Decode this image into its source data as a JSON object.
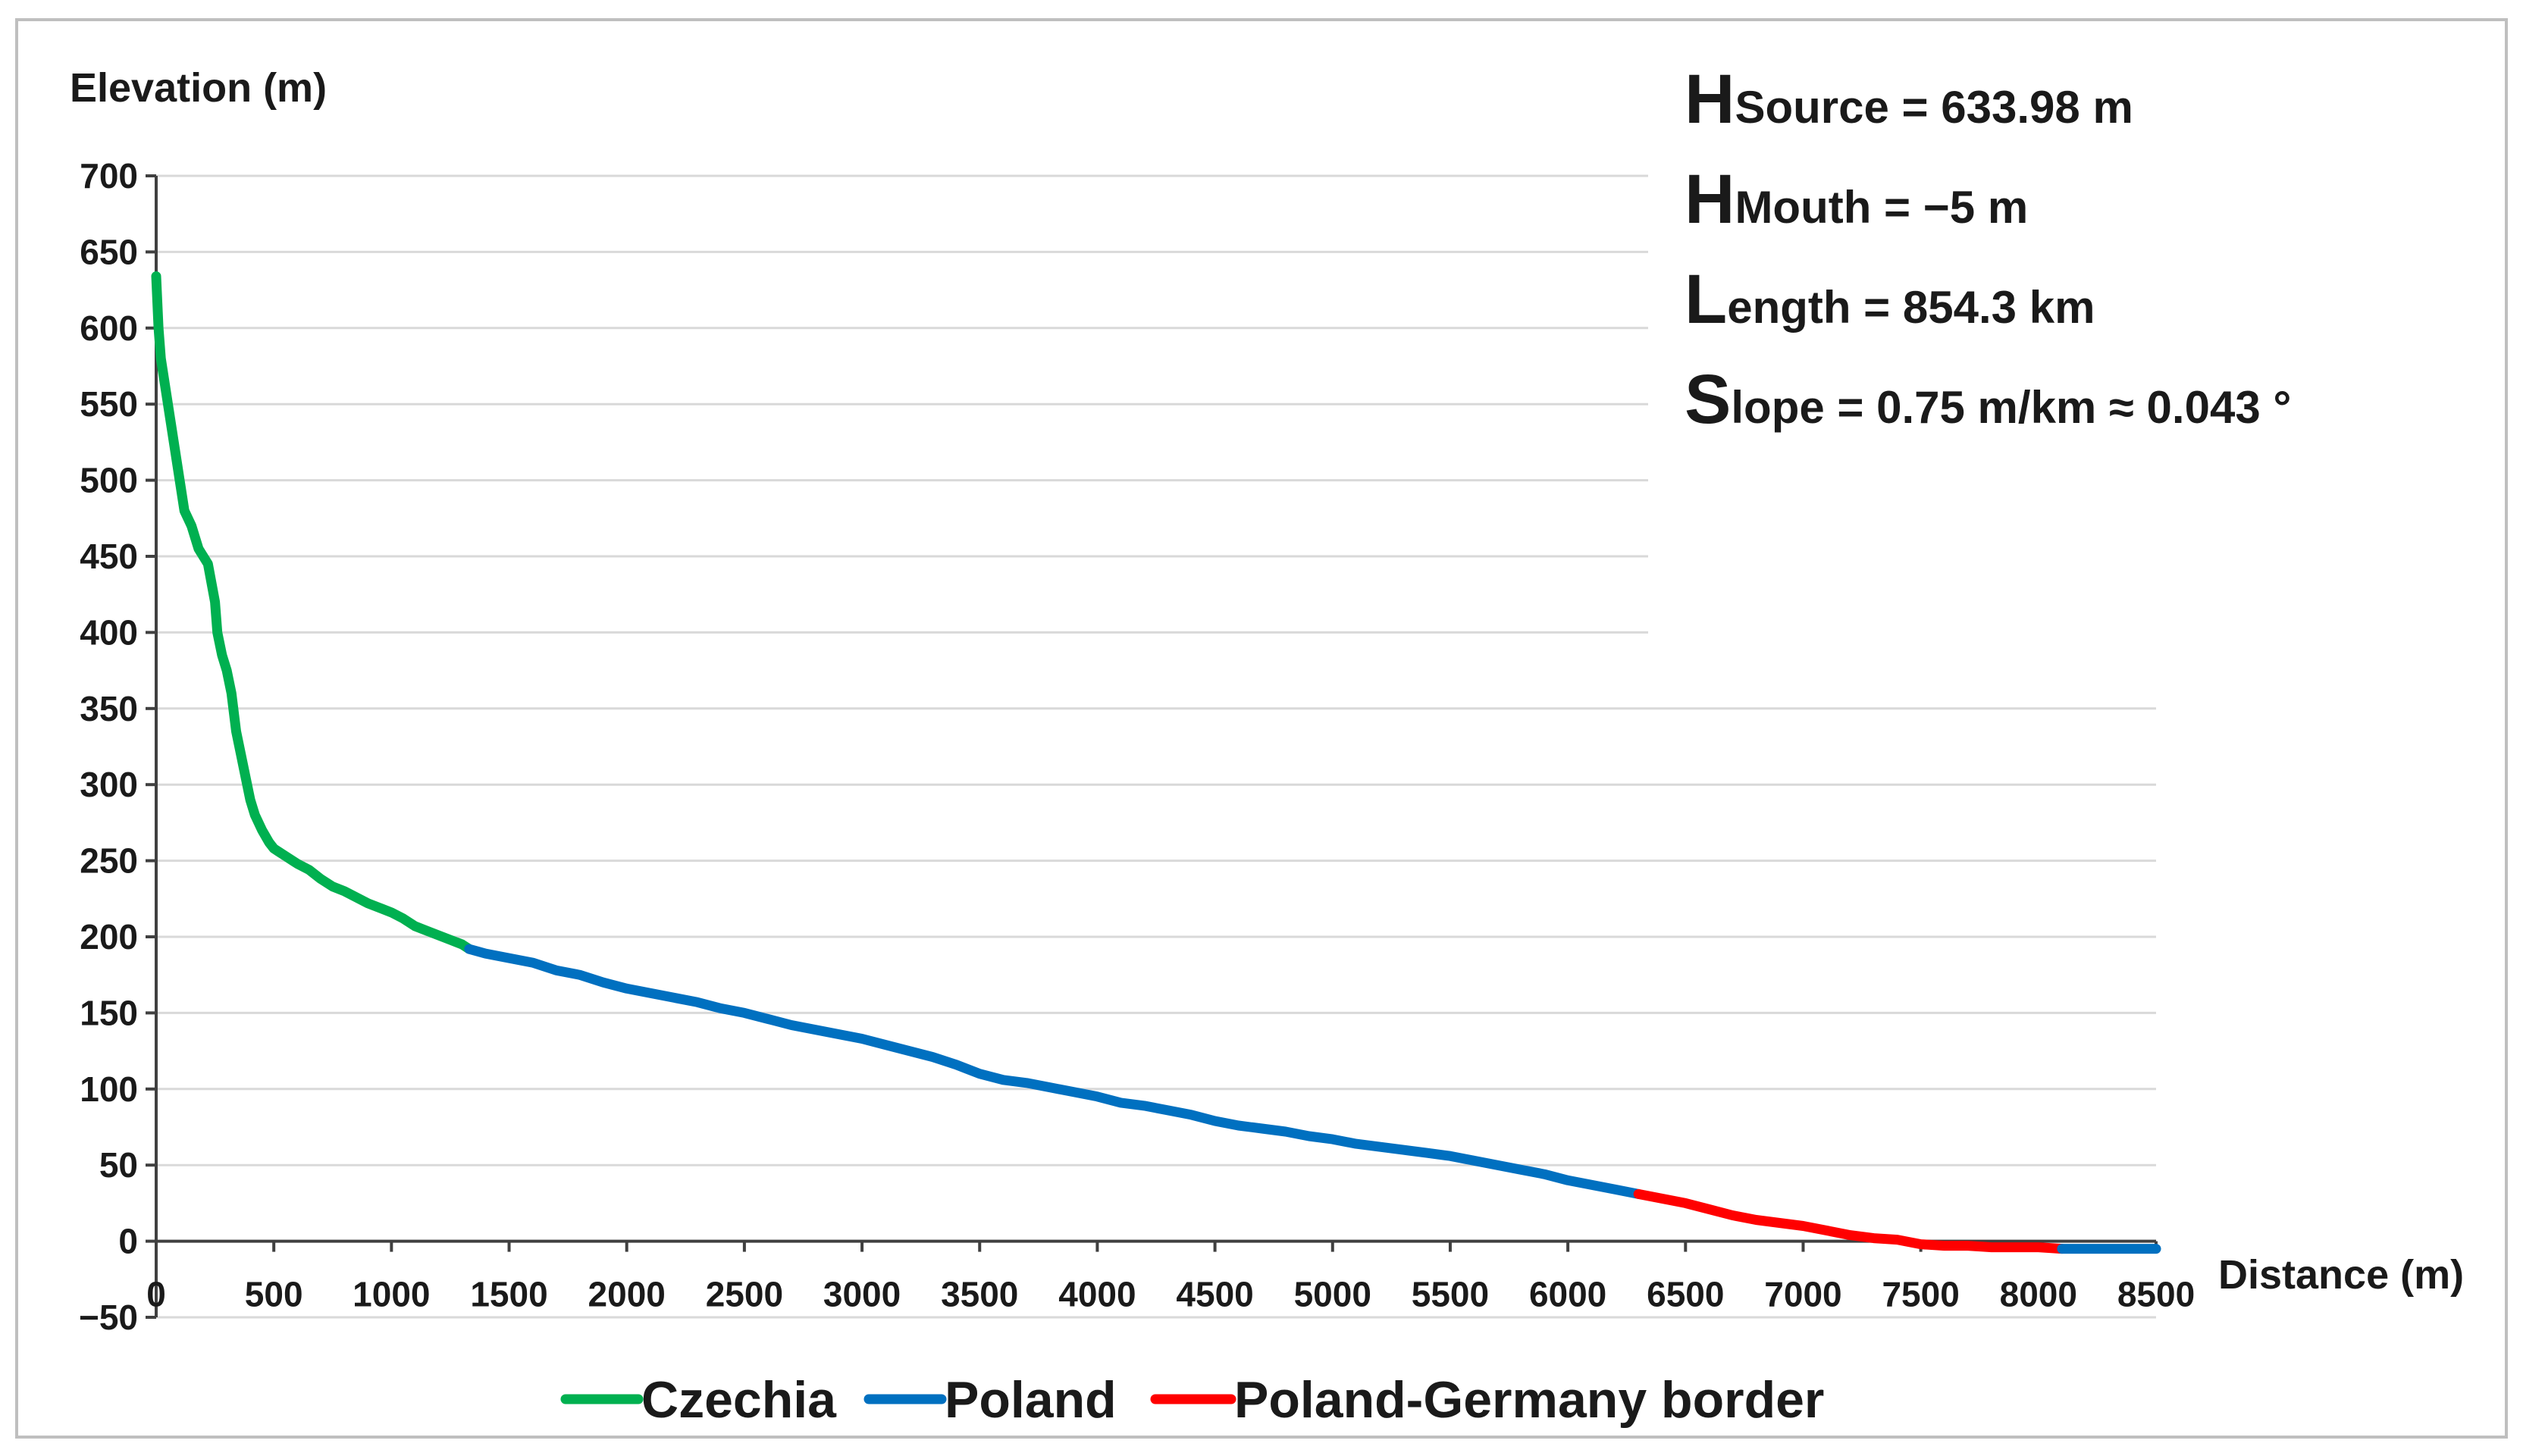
{
  "chart_data": {
    "type": "line",
    "title": "",
    "ylabel": "Elevation (m)",
    "xlabel": "Distance (m)",
    "xlim": [
      0,
      8500
    ],
    "ylim": [
      -50,
      700
    ],
    "xticks": [
      "0",
      "500",
      "1000",
      "1500",
      "2000",
      "2500",
      "3000",
      "3500",
      "4000",
      "4500",
      "5000",
      "5500",
      "6000",
      "6500",
      "7000",
      "7500",
      "8000",
      "8500"
    ],
    "yticks": [
      "700",
      "650",
      "600",
      "550",
      "500",
      "450",
      "400",
      "350",
      "300",
      "250",
      "200",
      "150",
      "100",
      "50",
      "0",
      "−50"
    ],
    "grid": true,
    "legend_position": "bottom",
    "legend": [
      {
        "label": "Czechia",
        "color": "#00b050"
      },
      {
        "label": "Poland",
        "color": "#0070c0"
      },
      {
        "label": "Poland-Germany border",
        "color": "#ff0000"
      }
    ],
    "series": [
      {
        "name": "Czechia",
        "color": "#00b050",
        "x": [
          0,
          10,
          20,
          40,
          60,
          80,
          100,
          120,
          150,
          180,
          220,
          250,
          260,
          280,
          300,
          320,
          340,
          360,
          380,
          400,
          420,
          450,
          480,
          500,
          520,
          550,
          600,
          650,
          700,
          750,
          800,
          850,
          900,
          950,
          1000,
          1050,
          1100,
          1150,
          1200,
          1250,
          1300,
          1330
        ],
        "y": [
          634,
          600,
          580,
          560,
          540,
          520,
          500,
          480,
          470,
          455,
          445,
          420,
          400,
          385,
          375,
          360,
          335,
          320,
          305,
          290,
          280,
          270,
          262,
          258,
          256,
          253,
          248,
          244,
          238,
          233,
          230,
          226,
          222,
          219,
          216,
          212,
          207,
          204,
          201,
          198,
          195,
          192
        ]
      },
      {
        "name": "Poland",
        "color": "#0070c0",
        "x": [
          1330,
          1400,
          1500,
          1600,
          1700,
          1800,
          1900,
          2000,
          2100,
          2200,
          2300,
          2400,
          2500,
          2600,
          2700,
          2800,
          2900,
          3000,
          3100,
          3200,
          3300,
          3400,
          3500,
          3600,
          3700,
          3800,
          3900,
          4000,
          4100,
          4200,
          4300,
          4400,
          4500,
          4600,
          4700,
          4800,
          4900,
          5000,
          5100,
          5200,
          5300,
          5400,
          5500,
          5600,
          5700,
          5800,
          5900,
          6000,
          6100,
          6200,
          6300
        ],
        "y": [
          192,
          189,
          186,
          183,
          178,
          175,
          170,
          166,
          163,
          160,
          157,
          153,
          150,
          146,
          142,
          139,
          136,
          133,
          129,
          125,
          121,
          116,
          110,
          106,
          104,
          101,
          98,
          95,
          91,
          89,
          86,
          83,
          79,
          76,
          74,
          72,
          69,
          67,
          64,
          62,
          60,
          58,
          56,
          53,
          50,
          47,
          44,
          40,
          37,
          34,
          31
        ]
      },
      {
        "name": "Poland-Germany border",
        "color": "#ff0000",
        "x": [
          6300,
          6400,
          6500,
          6600,
          6700,
          6800,
          6900,
          7000,
          7100,
          7200,
          7300,
          7400,
          7500,
          7600,
          7700,
          7800,
          7900,
          8000,
          8100
        ],
        "y": [
          31,
          28,
          25,
          21,
          17,
          14,
          12,
          10,
          7,
          4,
          2,
          1,
          -2,
          -3,
          -3,
          -4,
          -4,
          -4,
          -5
        ]
      },
      {
        "name": "Poland",
        "color": "#0070c0",
        "x": [
          8100,
          8200,
          8300,
          8400,
          8500
        ],
        "y": [
          -5,
          -5,
          -5,
          -5,
          -5
        ]
      }
    ]
  },
  "annotations": {
    "lines": [
      {
        "big": "H",
        "small": "Source",
        "rest": " = 633.98 m"
      },
      {
        "big": "H",
        "small": "Mouth",
        "rest": " = −5 m"
      },
      {
        "big": "L",
        "small": "ength",
        "rest": " = 854.3 km"
      },
      {
        "big": "S",
        "small": "lope",
        "rest": " = 0.75 m/km ≈ 0.043 °"
      }
    ]
  }
}
